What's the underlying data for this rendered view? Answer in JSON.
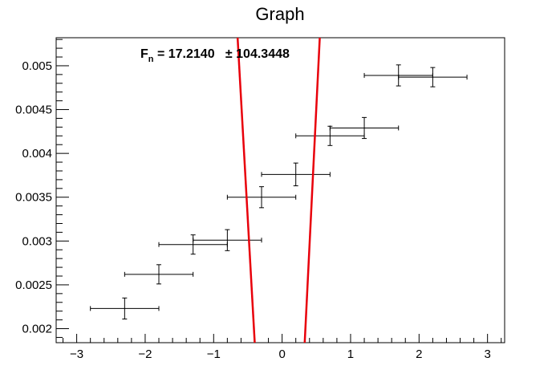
{
  "chart_data": {
    "type": "scatter",
    "title": "Graph",
    "xlabel": "",
    "ylabel": "",
    "xlim": [
      -3.3,
      3.25
    ],
    "ylim": [
      0.00184,
      0.00532
    ],
    "grid": false,
    "x_ticks": [
      -3,
      -2,
      -1,
      0,
      1,
      2,
      3
    ],
    "x_tick_labels": [
      "−3",
      "−2",
      "−1",
      "0",
      "1",
      "2",
      "3"
    ],
    "y_ticks": [
      0.002,
      0.0025,
      0.003,
      0.0035,
      0.004,
      0.0045,
      0.005
    ],
    "y_tick_labels": [
      "0.002",
      "0.0025",
      "0.003",
      "0.0035",
      "0.004",
      "0.0045",
      "0.005"
    ],
    "points": [
      {
        "x": -2.3,
        "y": 0.00223,
        "ex": 0.5,
        "ey": 0.00012
      },
      {
        "x": -1.8,
        "y": 0.00262,
        "ex": 0.5,
        "ey": 0.00011
      },
      {
        "x": -1.3,
        "y": 0.00296,
        "ex": 0.5,
        "ey": 0.00011
      },
      {
        "x": -0.8,
        "y": 0.00301,
        "ex": 0.5,
        "ey": 0.00012
      },
      {
        "x": -0.3,
        "y": 0.0035,
        "ex": 0.5,
        "ey": 0.00012
      },
      {
        "x": 0.2,
        "y": 0.00376,
        "ex": 0.5,
        "ey": 0.00013
      },
      {
        "x": 0.7,
        "y": 0.0042,
        "ex": 0.5,
        "ey": 0.00011
      },
      {
        "x": 1.2,
        "y": 0.00429,
        "ex": 0.5,
        "ey": 0.00012
      },
      {
        "x": 1.7,
        "y": 0.00489,
        "ex": 0.5,
        "ey": 0.00012
      },
      {
        "x": 2.2,
        "y": 0.00487,
        "ex": 0.5,
        "ey": 0.00011
      }
    ],
    "fit": {
      "color": "#e8000b",
      "label_main": "F",
      "label_sub": "n",
      "label_value": " = 17.2140   ± 104.3448",
      "curve_left": [
        [
          -0.65,
          0.00532
        ],
        [
          -0.4,
          0.00184
        ]
      ],
      "curve_right": [
        [
          0.55,
          0.00532
        ],
        [
          0.33,
          0.00184
        ]
      ]
    },
    "colors": {
      "marker": "#000000",
      "fit": "#e8000b",
      "frame": "#000000"
    }
  }
}
